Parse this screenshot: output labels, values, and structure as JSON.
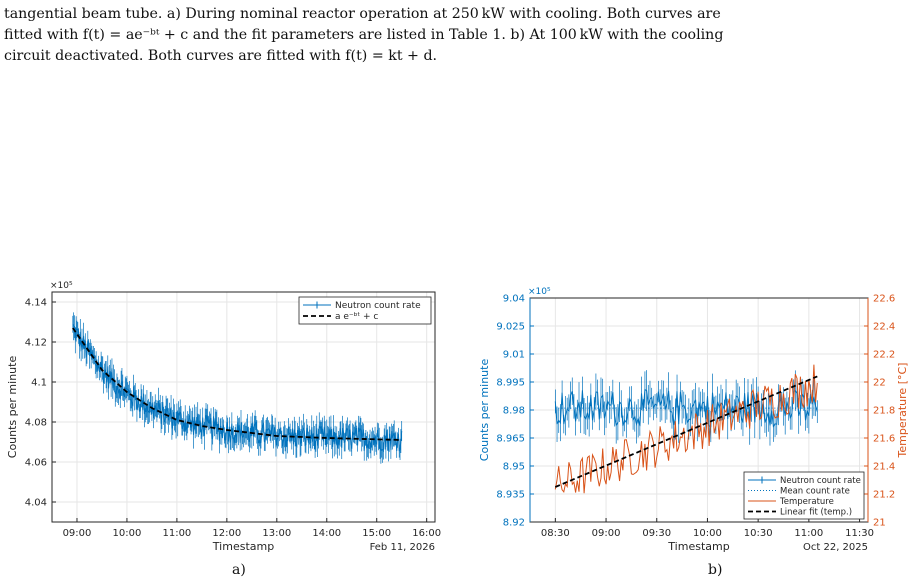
{
  "caption": {
    "lines": [
      "tangential beam tube. a) During nominal reactor operation at 250 kW with cooling. Both curves are",
      "fitted with f(t) = ae⁻ᵇᵗ + c and the fit parameters are listed in Table 1. b) At 100 kW with the cooling",
      "circuit deactivated. Both curves are fitted with f(t) = kt + d."
    ]
  },
  "subfigure_labels": [
    "a)",
    "b)"
  ],
  "colors": {
    "count_series": "#0072BD",
    "temperature_series": "#D95319",
    "fit_line": "#000000",
    "grid": "#e6e6e6"
  },
  "chart_data": [
    {
      "type": "line",
      "xlabel": "Timestamp",
      "x_suffix": "Feb 11, 2026",
      "ylabel": "Counts per minute",
      "y_exponent_label": "×10⁵",
      "xlim": [
        "08:30",
        "16:10"
      ],
      "x_ticks": [
        "09:00",
        "10:00",
        "11:00",
        "12:00",
        "13:00",
        "14:00",
        "15:00",
        "16:00"
      ],
      "ylim": [
        4.03,
        4.145
      ],
      "y_ticks": [
        "4.04",
        "4.06",
        "4.08",
        "4.1",
        "4.12",
        "4.14"
      ],
      "grid": true,
      "legend_position": "top-right",
      "series": [
        {
          "name": "Neutron count rate",
          "style": "errorbar",
          "color": "#0072BD",
          "x_range": [
            "08:55",
            "15:30"
          ],
          "decay_model": {
            "a": 0.056,
            "tau_minutes": 75,
            "c": 4.071
          },
          "noise_amplitude": 0.006,
          "error_amplitude": 0.005
        },
        {
          "name": "a e⁻ᵇᵗ + c",
          "style": "dashed",
          "color": "#000000",
          "x_range": [
            "08:55",
            "15:30"
          ],
          "points": [
            [
              "08:55",
              4.127
            ],
            [
              "09:30",
              4.106
            ],
            [
              "10:00",
              4.095
            ],
            [
              "10:30",
              4.087
            ],
            [
              "11:00",
              4.081
            ],
            [
              "11:30",
              4.078
            ],
            [
              "12:00",
              4.076
            ],
            [
              "13:00",
              4.073
            ],
            [
              "14:00",
              4.072
            ],
            [
              "15:30",
              4.071
            ]
          ]
        }
      ]
    },
    {
      "type": "line",
      "xlabel": "Timestamp",
      "x_suffix": "Oct 22, 2025",
      "ylabel": "Counts per minute",
      "y2label": "Temperature [°C]",
      "y_exponent_label": "×10⁵",
      "xlim": [
        "08:15",
        "11:35"
      ],
      "x_ticks": [
        "08:30",
        "09:00",
        "09:30",
        "10:00",
        "10:30",
        "11:00",
        "11:30"
      ],
      "ylim": [
        8.92,
        9.04
      ],
      "y_ticks": [
        "8.92",
        "8.935",
        "8.95",
        "8.965",
        "8.98",
        "8.995",
        "9.01",
        "9.025",
        "9.04"
      ],
      "y2lim": [
        21,
        22.6
      ],
      "y2_ticks": [
        "21",
        "21.2",
        "21.4",
        "21.6",
        "21.8",
        "22",
        "22.2",
        "22.4",
        "22.6"
      ],
      "grid": true,
      "legend_position": "bottom-right",
      "series": [
        {
          "name": "Neutron count rate",
          "style": "errorbar",
          "color": "#0072BD",
          "axis": "left",
          "x_range": [
            "08:30",
            "11:05"
          ],
          "mean": 8.981,
          "noise_amplitude": 0.01,
          "error_amplitude": 0.008
        },
        {
          "name": "Mean count rate",
          "style": "dotted",
          "color": "#0072BD",
          "axis": "left",
          "value": 8.981
        },
        {
          "name": "Temperature",
          "style": "solid",
          "color": "#D95319",
          "axis": "right",
          "x_range": [
            "08:30",
            "11:05"
          ],
          "start": 21.25,
          "end": 22.0,
          "noise_amplitude": 0.15
        },
        {
          "name": "Linear fit (temp.)",
          "style": "dashed",
          "color": "#000000",
          "axis": "right",
          "points": [
            [
              "08:30",
              21.25
            ],
            [
              "11:05",
              22.04
            ]
          ]
        }
      ]
    }
  ]
}
